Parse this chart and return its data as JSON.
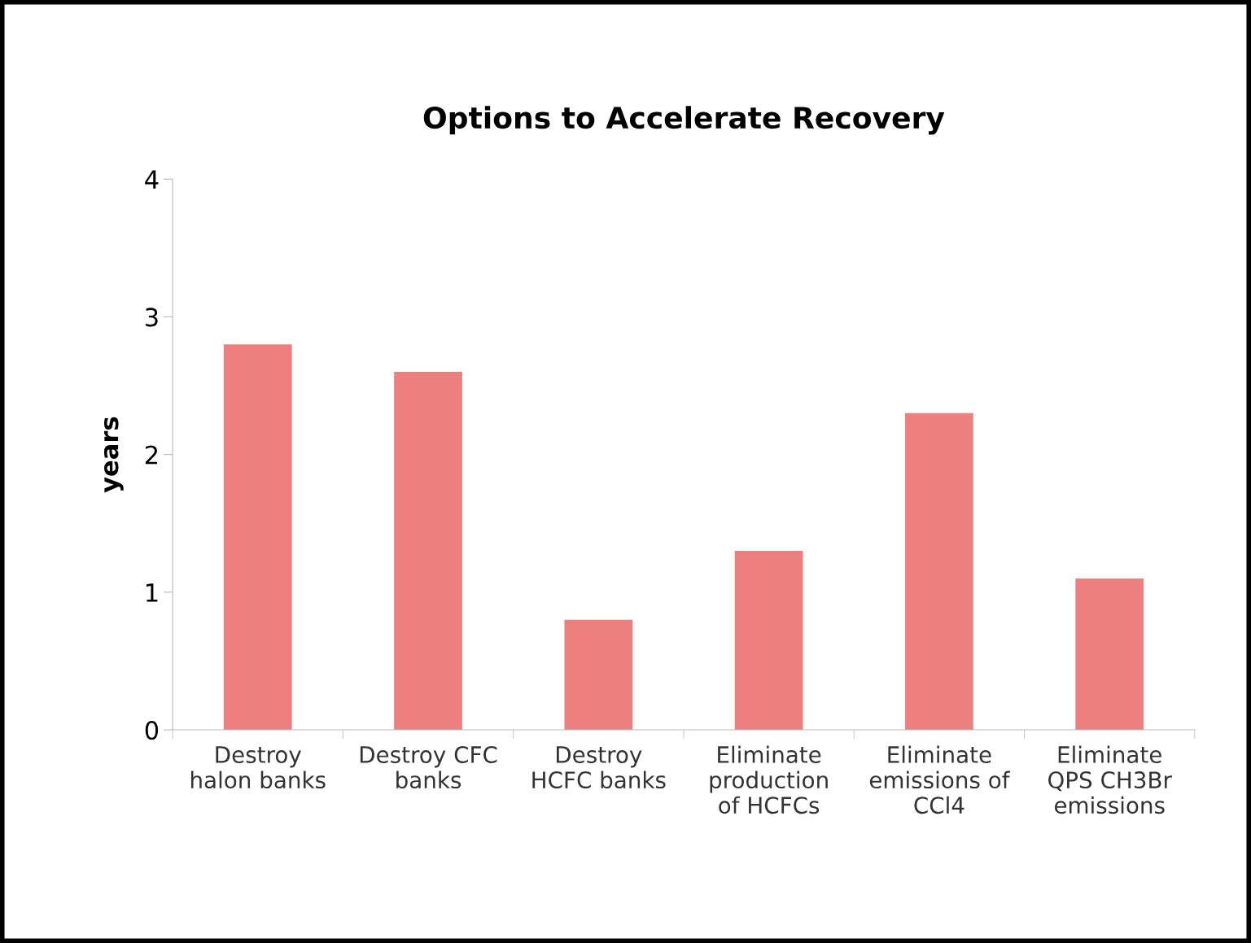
{
  "chart_data": {
    "type": "bar",
    "title": "Options to Accelerate Recovery",
    "ylabel": "years",
    "categories": [
      "Destroy\nhalon banks",
      "Destroy CFC\nbanks",
      "Destroy\nHCFC banks",
      "Eliminate\nproduction\nof HCFCs",
      "Eliminate\nemissions of\nCCl4",
      "Eliminate\nQPS CH3Br\nemissions"
    ],
    "values": [
      2.8,
      2.6,
      0.8,
      1.3,
      2.3,
      1.1
    ],
    "color": "#ee7f7f",
    "ylim": [
      0,
      4
    ],
    "yticks": [
      0,
      1,
      2,
      3,
      4
    ],
    "grid": false,
    "legend": false
  }
}
